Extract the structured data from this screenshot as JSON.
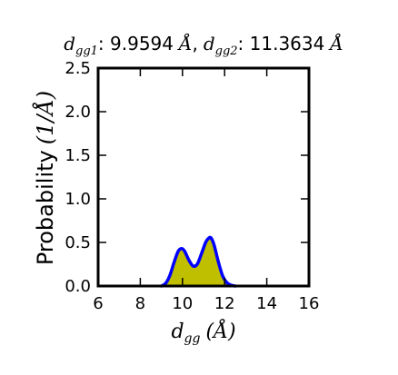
{
  "chart_data": {
    "type": "area",
    "title": {
      "sym1": "d",
      "sub1": "gg1",
      "val1": ": 9.9594",
      "unit1": "Å",
      "sep": ",",
      "sym2": "d",
      "sub2": "gg2",
      "val2": ": 11.3634",
      "unit2": "Å"
    },
    "xlabel": {
      "sym": "d",
      "sub": "gg",
      "unit": "(Å)"
    },
    "ylabel": {
      "text": "Probability",
      "unit": "(1/Å)"
    },
    "xlim": [
      6,
      16
    ],
    "ylim": [
      0,
      2.5
    ],
    "xticks": [
      6,
      8,
      10,
      12,
      14,
      16
    ],
    "yticks": [
      0.0,
      0.5,
      1.0,
      1.5,
      2.0,
      2.5
    ],
    "xtick_labels": [
      "6",
      "8",
      "10",
      "12",
      "14",
      "16"
    ],
    "ytick_labels": [
      "0.0",
      "0.5",
      "1.0",
      "1.5",
      "2.0",
      "2.5"
    ],
    "grid": false,
    "series": [
      {
        "line_color": "#0000ff",
        "fill_color": "#bfbf00",
        "x": [
          9.0,
          9.2,
          9.4,
          9.6,
          9.8,
          9.96,
          10.1,
          10.3,
          10.5,
          10.7,
          10.9,
          11.1,
          11.25,
          11.36,
          11.5,
          11.7,
          11.9,
          12.1,
          12.3,
          12.5
        ],
        "values": [
          0.0,
          0.03,
          0.12,
          0.27,
          0.4,
          0.43,
          0.4,
          0.3,
          0.23,
          0.25,
          0.37,
          0.5,
          0.55,
          0.55,
          0.47,
          0.28,
          0.12,
          0.04,
          0.01,
          0.0
        ]
      }
    ]
  }
}
